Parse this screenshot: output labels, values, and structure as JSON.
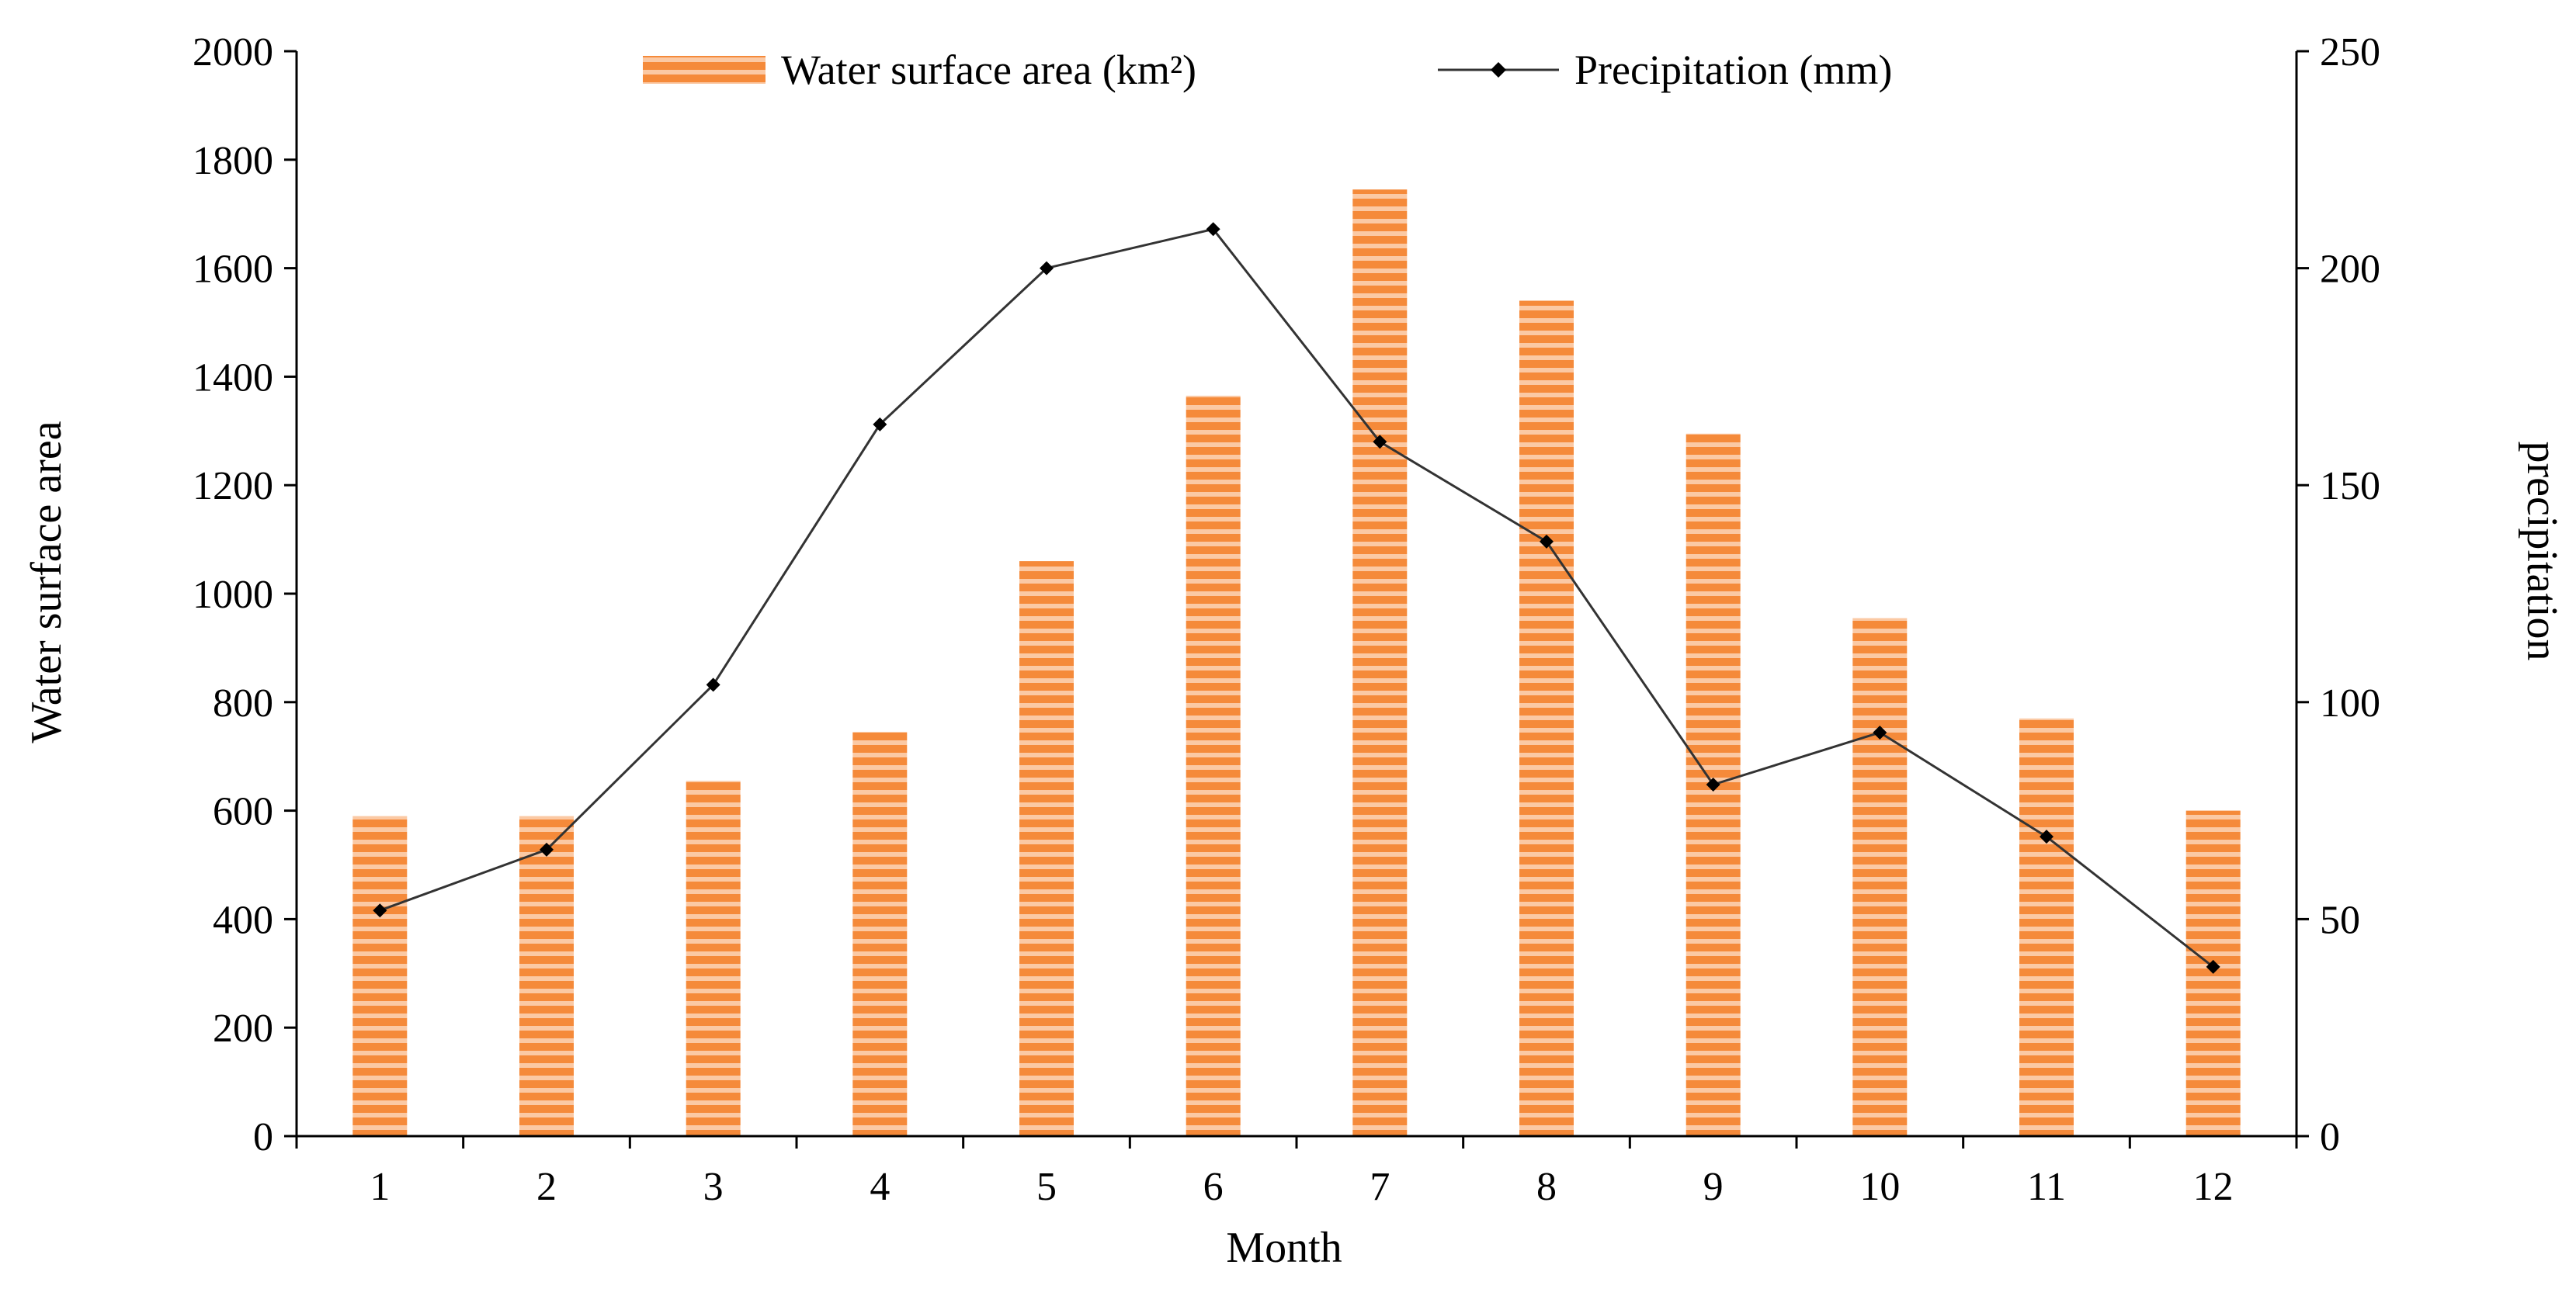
{
  "chart_data": {
    "type": "bar+line",
    "title": "",
    "xlabel": "Month",
    "ylabel": "Water surface area",
    "y2label": "precipitation",
    "categories": [
      "1",
      "2",
      "3",
      "4",
      "5",
      "6",
      "7",
      "8",
      "9",
      "10",
      "11",
      "12"
    ],
    "ylim": [
      0,
      2000
    ],
    "yticks": [
      "0",
      "200",
      "400",
      "600",
      "800",
      "1000",
      "1200",
      "1400",
      "1600",
      "1800",
      "2000"
    ],
    "y2lim": [
      0,
      250
    ],
    "y2ticks": [
      "0",
      "50",
      "100",
      "150",
      "200",
      "250"
    ],
    "legend_position": "top-center",
    "grid": false,
    "series": [
      {
        "name": "Water surface area (km²)",
        "type": "bar",
        "axis": "left",
        "color": "#F58A3A",
        "stripe_color": "#FBC9A4",
        "values": [
          590,
          590,
          655,
          745,
          1060,
          1365,
          1745,
          1540,
          1295,
          955,
          770,
          600
        ]
      },
      {
        "name": "Precipitation (mm)",
        "type": "line",
        "axis": "right",
        "color": "#333333",
        "marker": "diamond",
        "values": [
          52,
          66,
          104,
          164,
          200,
          209,
          160,
          137,
          81,
          93,
          69,
          39
        ]
      }
    ]
  }
}
